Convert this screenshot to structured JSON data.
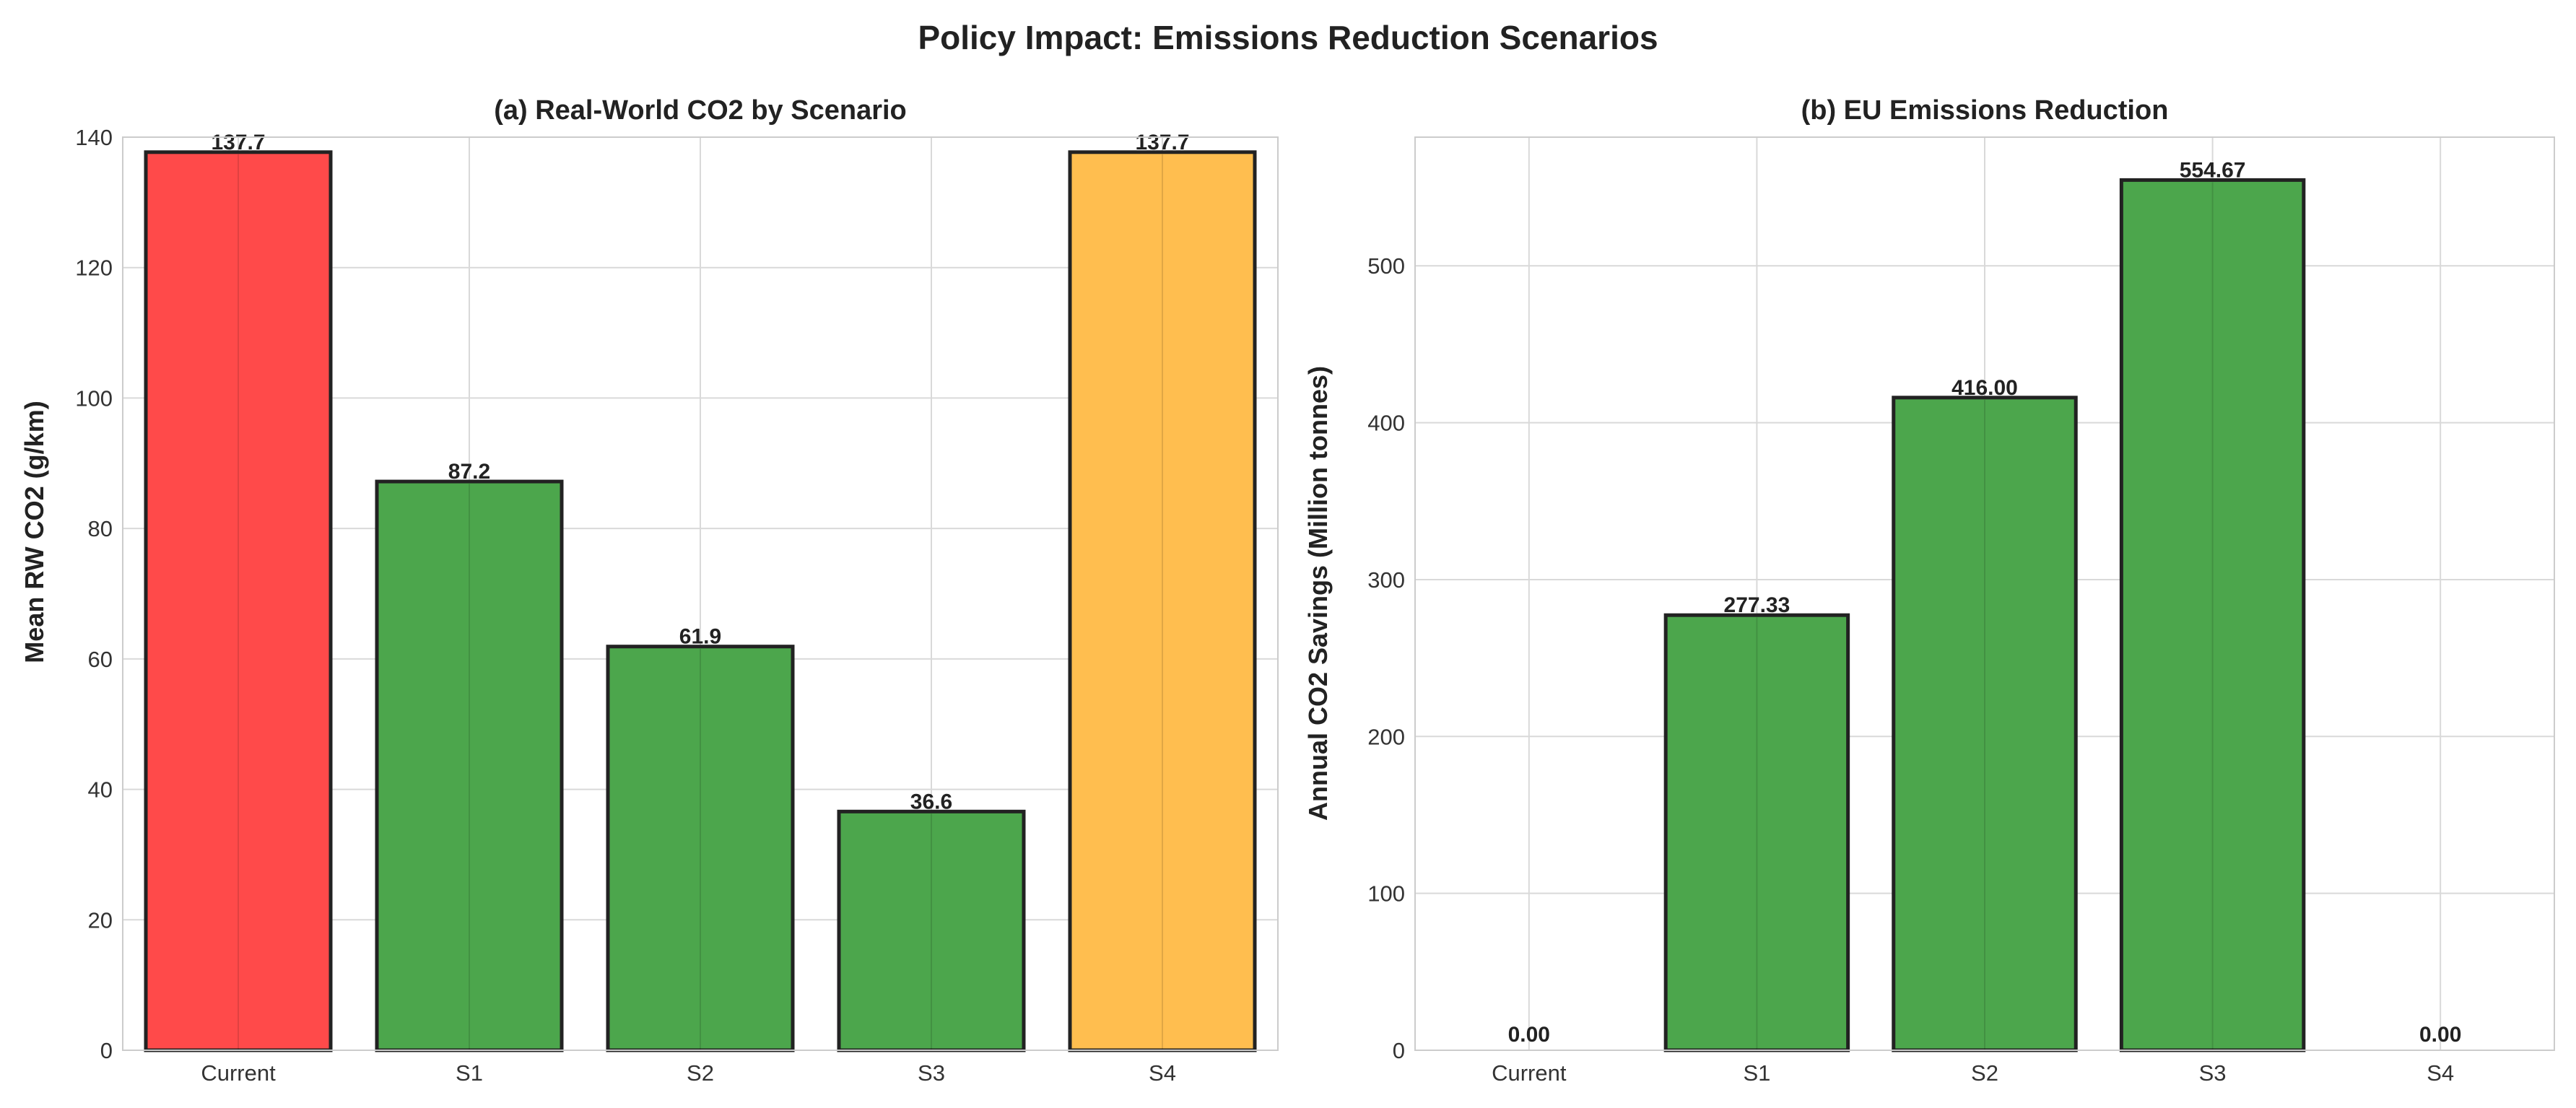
{
  "figure_title": "Policy Impact: Emissions Reduction Scenarios",
  "colors": {
    "red": "#ff4a4a",
    "green": "#4ca64c",
    "orange": "#ffbe4f",
    "bar_edge": "#222222",
    "grid": "#d9d9d9"
  },
  "chart_data": [
    {
      "type": "bar",
      "title": "(a) Real-World CO2 by Scenario",
      "xlabel": "",
      "ylabel": "Mean RW  CO2 (g/km)",
      "categories": [
        "Current",
        "S1",
        "S2",
        "S3",
        "S4"
      ],
      "values": [
        137.7,
        87.2,
        61.9,
        36.6,
        137.7
      ],
      "value_labels": [
        "137.7",
        "87.2",
        "61.9",
        "36.6",
        "137.7"
      ],
      "bar_colors": [
        "red",
        "green",
        "green",
        "green",
        "orange"
      ],
      "ylim": [
        0,
        140
      ],
      "yticks": [
        0,
        20,
        40,
        60,
        80,
        100,
        120,
        140
      ],
      "ytick_labels": [
        "0",
        "20",
        "40",
        "60",
        "80",
        "100",
        "120",
        "140"
      ],
      "grid": true
    },
    {
      "type": "bar",
      "title": "(b) EU Emissions Reduction",
      "xlabel": "",
      "ylabel": "Annual CO2 Savings (Million tonnes)",
      "categories": [
        "Current",
        "S1",
        "S2",
        "S3",
        "S4"
      ],
      "values": [
        0.0,
        277.33,
        416.0,
        554.67,
        0.0
      ],
      "value_labels": [
        "0.00",
        "277.33",
        "416.00",
        "554.67",
        "0.00"
      ],
      "bar_colors": [
        "green",
        "green",
        "green",
        "green",
        "green"
      ],
      "ylim": [
        0,
        582
      ],
      "yticks": [
        0,
        100,
        200,
        300,
        400,
        500
      ],
      "ytick_labels": [
        "0",
        "100",
        "200",
        "300",
        "400",
        "500"
      ],
      "grid": true
    }
  ]
}
